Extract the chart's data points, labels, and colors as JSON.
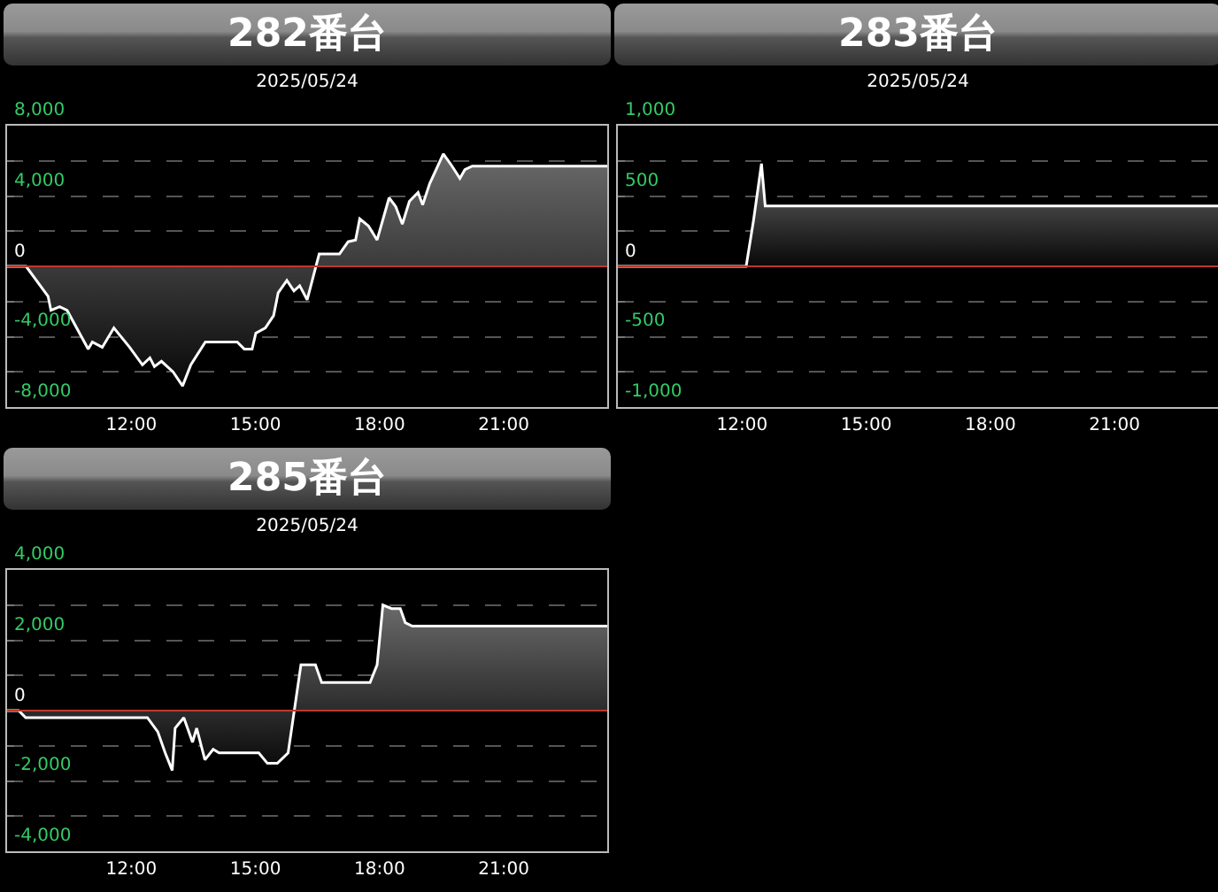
{
  "chart_data": [
    {
      "type": "area",
      "title": "282番台",
      "subtitle": "2025/05/24",
      "grid": "y",
      "x": [
        9.0,
        9.46,
        9.99,
        10.06,
        10.27,
        10.45,
        10.96,
        11.06,
        11.3,
        11.58,
        11.96,
        12.27,
        12.45,
        12.56,
        12.73,
        13.01,
        13.24,
        13.44,
        13.79,
        14.56,
        14.73,
        14.92,
        15.01,
        15.24,
        15.44,
        15.55,
        15.76,
        15.93,
        16.07,
        16.25,
        16.54,
        17.03,
        17.24,
        17.42,
        17.52,
        17.73,
        17.94,
        18.23,
        18.39,
        18.55,
        18.72,
        18.93,
        19.04,
        19.21,
        19.54,
        19.75,
        19.94,
        20.06,
        20.24,
        23.5
      ],
      "series": [
        {
          "color": "#ffffff",
          "values": [
            0,
            0,
            -1700,
            -2500,
            -2300,
            -2500,
            -4700,
            -4300,
            -4600,
            -3500,
            -4600,
            -5600,
            -5200,
            -5700,
            -5400,
            -6000,
            -6800,
            -5600,
            -4300,
            -4300,
            -4700,
            -4700,
            -3800,
            -3500,
            -2800,
            -1500,
            -800,
            -1400,
            -1100,
            -1900,
            700,
            700,
            1400,
            1500,
            2700,
            2300,
            1500,
            3900,
            3400,
            2400,
            3700,
            4200,
            3500,
            4700,
            6400,
            5700,
            5000,
            5500,
            5700,
            5700
          ]
        }
      ],
      "xlim": [
        9,
        23.5
      ],
      "xticks": [
        {
          "value": 12,
          "label": "12:00"
        },
        {
          "value": 15,
          "label": "15:00"
        },
        {
          "value": 18,
          "label": "18:00"
        },
        {
          "value": 21,
          "label": "21:00"
        }
      ],
      "ylim": [
        -8000,
        8000
      ],
      "yticks": [
        {
          "value": -8000,
          "label": "-8,000"
        },
        {
          "value": -6000,
          "label": null
        },
        {
          "value": -4000,
          "label": "-4,000"
        },
        {
          "value": -2000,
          "label": null
        },
        0,
        {
          "value": 2000,
          "label": null
        },
        {
          "value": 4000,
          "label": "4,000"
        },
        {
          "value": 6000,
          "label": null
        },
        {
          "value": 8000,
          "label": "8,000"
        }
      ],
      "ref_lines": [
        {
          "axis": "y",
          "value": 0,
          "color": "#c0392b"
        }
      ]
    },
    {
      "type": "area",
      "title": "283番台",
      "subtitle": "2025/05/24",
      "grid": "y",
      "x": [
        9.0,
        12.1,
        12.28,
        12.47,
        12.56,
        23.5
      ],
      "series": [
        {
          "color": "#ffffff",
          "values": [
            0,
            0,
            330,
            730,
            430,
            430
          ]
        }
      ],
      "xlim": [
        9,
        23.5
      ],
      "xticks": [
        {
          "value": 12,
          "label": "12:00"
        },
        {
          "value": 15,
          "label": "15:00"
        },
        {
          "value": 18,
          "label": "18:00"
        },
        {
          "value": 21,
          "label": "21:00"
        }
      ],
      "ylim": [
        -1000,
        1000
      ],
      "yticks": [
        {
          "value": -1000,
          "label": "-1,000"
        },
        {
          "value": -750,
          "label": null
        },
        -500,
        {
          "value": -250,
          "label": null
        },
        0,
        {
          "value": 250,
          "label": null
        },
        500,
        {
          "value": 750,
          "label": null
        },
        {
          "value": 1000,
          "label": "1,000"
        }
      ],
      "ref_lines": [
        {
          "axis": "y",
          "value": 0,
          "color": "#c0392b"
        }
      ]
    },
    {
      "type": "area",
      "title": "285番台",
      "subtitle": "2025/05/24",
      "grid": "y",
      "x": [
        9.0,
        9.28,
        9.45,
        12.39,
        12.64,
        12.82,
        12.99,
        13.06,
        13.27,
        13.48,
        13.58,
        13.78,
        13.98,
        14.12,
        15.08,
        15.29,
        15.53,
        15.79,
        16.1,
        16.45,
        16.6,
        17.77,
        17.94,
        18.08,
        18.29,
        18.5,
        18.62,
        18.79,
        23.5
      ],
      "series": [
        {
          "color": "#ffffff",
          "values": [
            0,
            0,
            -200,
            -200,
            -600,
            -1200,
            -1700,
            -500,
            -200,
            -900,
            -500,
            -1400,
            -1100,
            -1200,
            -1200,
            -1500,
            -1500,
            -1200,
            1300,
            1300,
            800,
            800,
            1300,
            3000,
            2900,
            2900,
            2500,
            2400,
            2400
          ]
        }
      ],
      "xlim": [
        9,
        23.5
      ],
      "xticks": [
        {
          "value": 12,
          "label": "12:00"
        },
        {
          "value": 15,
          "label": "15:00"
        },
        {
          "value": 18,
          "label": "18:00"
        },
        {
          "value": 21,
          "label": "21:00"
        }
      ],
      "ylim": [
        -4000,
        4000
      ],
      "yticks": [
        {
          "value": -4000,
          "label": "-4,000"
        },
        {
          "value": -3000,
          "label": null
        },
        {
          "value": -2000,
          "label": "-2,000"
        },
        {
          "value": -1000,
          "label": null
        },
        0,
        {
          "value": 1000,
          "label": null
        },
        {
          "value": 2000,
          "label": "2,000"
        },
        {
          "value": 3000,
          "label": null
        },
        {
          "value": 4000,
          "label": "4,000"
        }
      ],
      "ref_lines": [
        {
          "axis": "y",
          "value": 0,
          "color": "#c0392b"
        }
      ]
    }
  ]
}
